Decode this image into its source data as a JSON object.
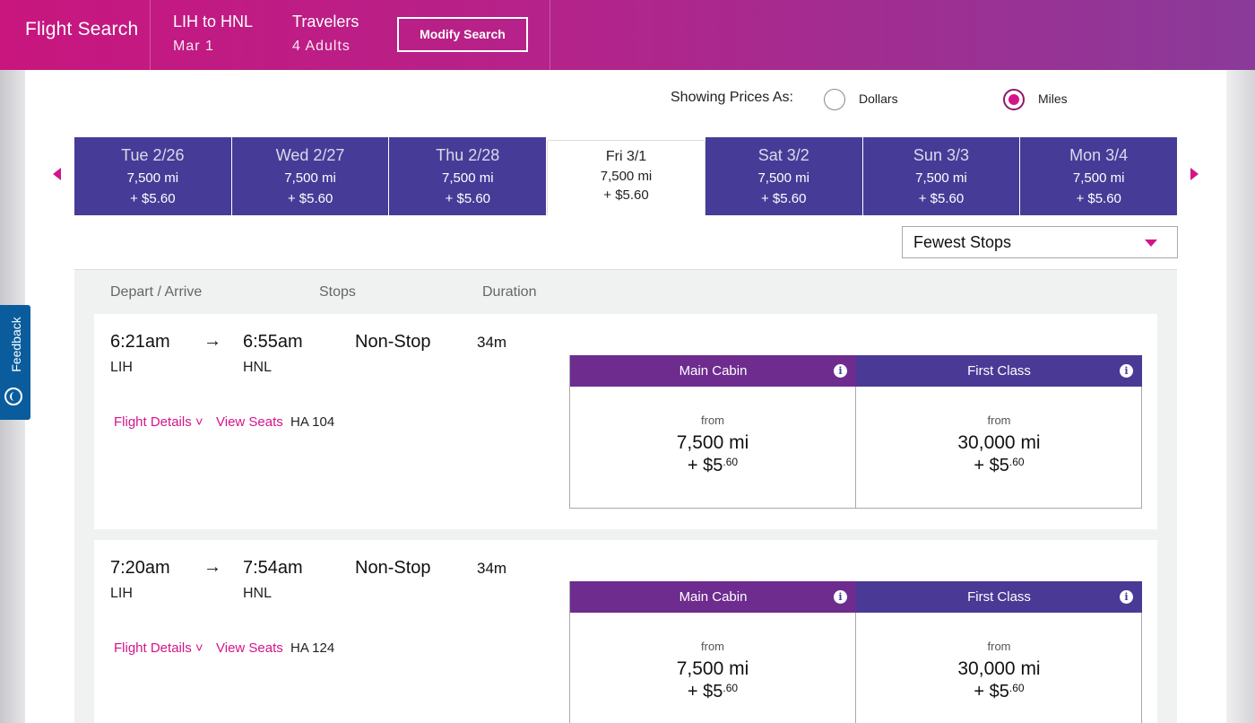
{
  "header": {
    "title": "Flight Search",
    "route": "LIH to HNL",
    "date": "Mar 1",
    "travelers_label": "Travelers",
    "travelers_value": "4 Adults",
    "modify_label": "Modify Search"
  },
  "price_toggle": {
    "label": "Showing Prices As:",
    "options": [
      {
        "label": "Dollars",
        "selected": false
      },
      {
        "label": "Miles",
        "selected": true
      }
    ]
  },
  "dates": [
    {
      "day": "Tue 2/26",
      "miles": "7,500 mi",
      "fee": "+ $5.60",
      "active": false
    },
    {
      "day": "Wed 2/27",
      "miles": "7,500 mi",
      "fee": "+ $5.60",
      "active": false
    },
    {
      "day": "Thu 2/28",
      "miles": "7,500 mi",
      "fee": "+ $5.60",
      "active": false
    },
    {
      "day": "Fri 3/1",
      "miles": "7,500 mi",
      "fee": "+ $5.60",
      "active": true
    },
    {
      "day": "Sat 3/2",
      "miles": "7,500 mi",
      "fee": "+ $5.60",
      "active": false
    },
    {
      "day": "Sun 3/3",
      "miles": "7,500 mi",
      "fee": "+ $5.60",
      "active": false
    },
    {
      "day": "Mon 3/4",
      "miles": "7,500 mi",
      "fee": "+ $5.60",
      "active": false
    }
  ],
  "sort": {
    "selected": "Fewest Stops"
  },
  "columns": {
    "depart_arrive": "Depart / Arrive",
    "stops": "Stops",
    "duration": "Duration"
  },
  "flights": [
    {
      "depart_time": "6:21am",
      "arrive_time": "6:55am",
      "depart_code": "LIH",
      "arrive_code": "HNL",
      "stops": "Non-Stop",
      "duration": "34m",
      "details_label": "Flight Details",
      "seats_label": "View Seats",
      "flight_number": "HA 104",
      "fares": {
        "main": {
          "label": "Main Cabin",
          "from": "from",
          "miles": "7,500 mi",
          "fee_whole": "+ $5",
          "fee_cents": ".60"
        },
        "first": {
          "label": "First Class",
          "from": "from",
          "miles": "30,000 mi",
          "fee_whole": "+ $5",
          "fee_cents": ".60"
        }
      }
    },
    {
      "depart_time": "7:20am",
      "arrive_time": "7:54am",
      "depart_code": "LIH",
      "arrive_code": "HNL",
      "stops": "Non-Stop",
      "duration": "34m",
      "details_label": "Flight Details",
      "seats_label": "View Seats",
      "flight_number": "HA 124",
      "fares": {
        "main": {
          "label": "Main Cabin",
          "from": "from",
          "miles": "7,500 mi",
          "fee_whole": "+ $5",
          "fee_cents": ".60"
        },
        "first": {
          "label": "First Class",
          "from": "from",
          "miles": "30,000 mi",
          "fee_whole": "+ $5",
          "fee_cents": ".60"
        }
      }
    }
  ],
  "feedback": {
    "label": "Feedback"
  },
  "colors": {
    "brand_magenta": "#d4148a",
    "date_purple": "#463c97",
    "main_cabin": "#6e2c8f",
    "first_class": "#4a3a95",
    "feedback_blue": "#0a5c9c"
  }
}
